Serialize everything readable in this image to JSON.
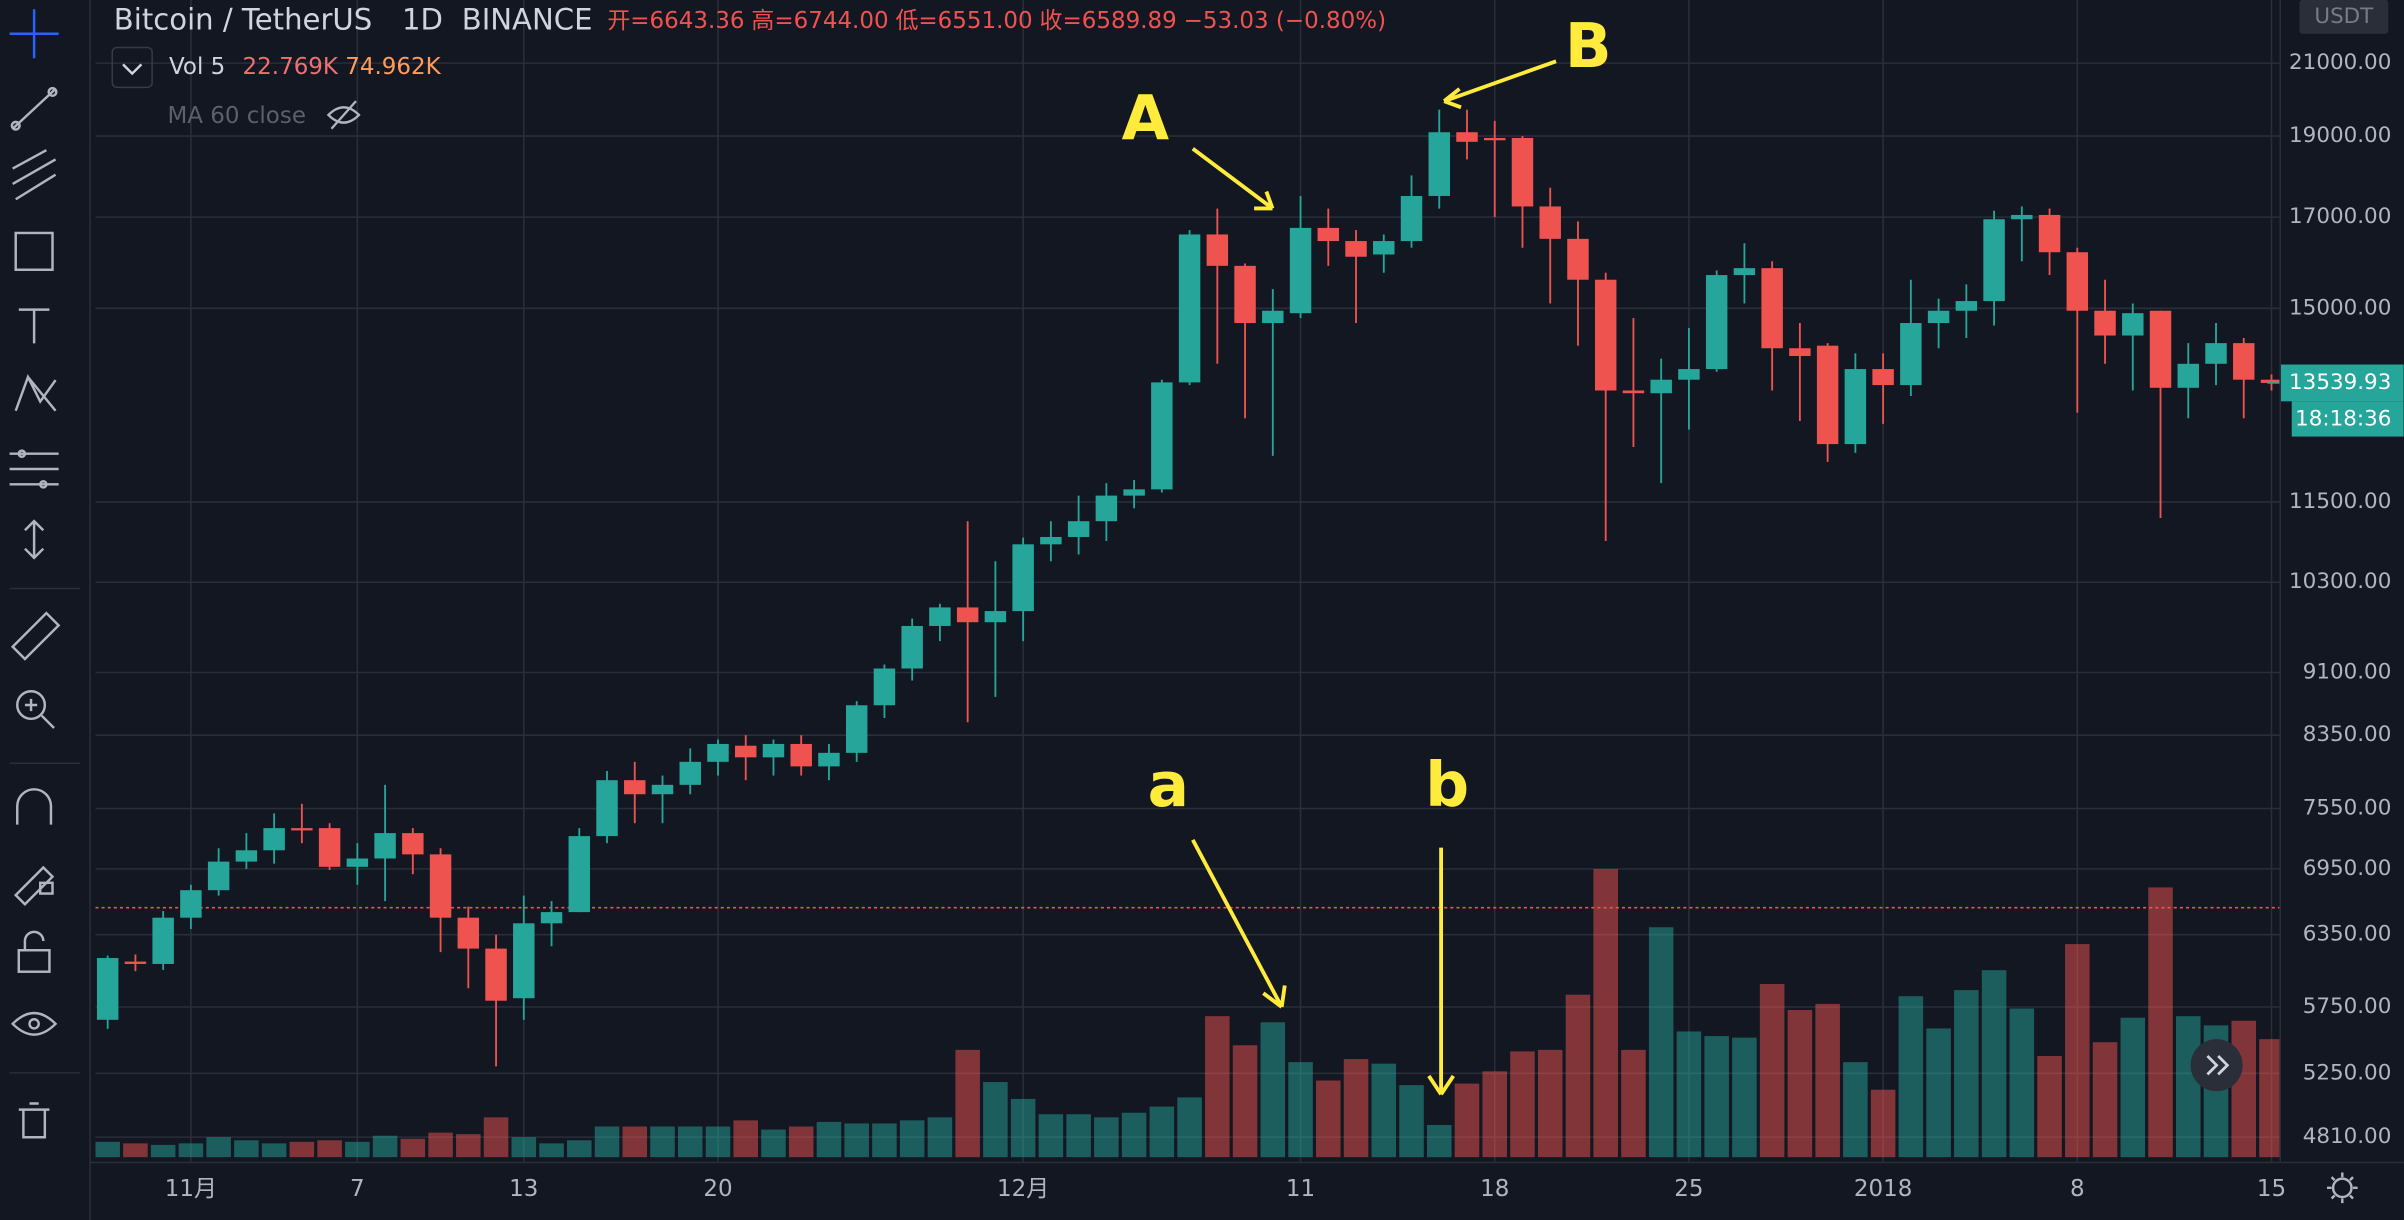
{
  "header": {
    "symbol": "Bitcoin / TetherUS",
    "interval": "1D",
    "exchange": "BINANCE",
    "ohlc": [
      "开=6643.36",
      "高=6744.00",
      "低=6551.00",
      "收=6589.89",
      "−53.03 (−0.80%)"
    ],
    "volume_legend": {
      "name": "Vol 5",
      "values": [
        "22.769K",
        "74.962K"
      ]
    },
    "ma_legend": "MA 60 close",
    "currency": "USDT",
    "timer": "18:18:36"
  },
  "chart_data": {
    "type": "candlestick",
    "log": true,
    "grid": true,
    "up_color": "#26a69a",
    "down_color": "#ef5350",
    "categories": [
      null,
      null,
      null,
      "11月",
      null,
      null,
      null,
      null,
      null,
      "7",
      null,
      null,
      null,
      null,
      null,
      "13",
      null,
      null,
      null,
      null,
      null,
      null,
      "20",
      null,
      null,
      null,
      null,
      null,
      null,
      null,
      null,
      null,
      null,
      "12月",
      null,
      null,
      null,
      null,
      null,
      null,
      null,
      null,
      null,
      "11",
      null,
      null,
      null,
      null,
      null,
      null,
      "18",
      null,
      null,
      null,
      null,
      null,
      null,
      "25",
      null,
      null,
      null,
      null,
      null,
      null,
      "2018",
      null,
      null,
      null,
      null,
      null,
      null,
      "8",
      null,
      null,
      null,
      null,
      null,
      null,
      "15"
    ],
    "open": [
      5650,
      6120,
      6100,
      6500,
      6750,
      7020,
      7130,
      7350,
      7350,
      6970,
      7050,
      7300,
      7090,
      6500,
      6230,
      5820,
      6450,
      6550,
      7270,
      7850,
      7700,
      7800,
      8050,
      8230,
      8100,
      8250,
      8000,
      8150,
      8700,
      9150,
      9700,
      9950,
      9750,
      9900,
      10850,
      10960,
      11200,
      11600,
      11700,
      13550,
      16600,
      15900,
      14700,
      14900,
      16750,
      16450,
      16150,
      16450,
      17500,
      19100,
      18950,
      18950,
      17250,
      16500,
      15600,
      13400,
      13350,
      13600,
      13800,
      15700,
      15850,
      14200,
      14250,
      12450,
      13800,
      13500,
      14700,
      14950,
      15150,
      16950,
      17050,
      16200,
      14950,
      14450,
      14950,
      13450,
      13900,
      14300,
      13600
    ],
    "high": [
      6170,
      6180,
      6560,
      6800,
      7150,
      7300,
      7500,
      7600,
      7400,
      7200,
      7800,
      7350,
      7150,
      6600,
      6350,
      6700,
      6650,
      7350,
      7950,
      8050,
      7900,
      8200,
      8300,
      8350,
      8300,
      8350,
      8250,
      8750,
      9200,
      9800,
      10000,
      11200,
      10600,
      10950,
      11200,
      11600,
      11800,
      11850,
      13600,
      16700,
      17200,
      15950,
      15400,
      17500,
      17200,
      16700,
      16600,
      18000,
      19700,
      19700,
      19400,
      19000,
      17700,
      16900,
      15750,
      14800,
      14000,
      14600,
      15800,
      16400,
      16000,
      14700,
      14300,
      14100,
      14100,
      15600,
      15200,
      15500,
      17150,
      17250,
      17200,
      16300,
      15600,
      15100,
      14950,
      14300,
      14700,
      14400,
      13700
    ],
    "low": [
      5580,
      6040,
      6050,
      6400,
      6700,
      6950,
      7000,
      7200,
      6940,
      6800,
      6650,
      6900,
      6200,
      5900,
      5300,
      5650,
      6250,
      6550,
      7200,
      7400,
      7400,
      7700,
      7900,
      7850,
      7900,
      7900,
      7850,
      8050,
      8550,
      9000,
      9500,
      8500,
      8800,
      9500,
      10600,
      10700,
      10900,
      11400,
      11650,
      13500,
      13900,
      12900,
      12250,
      14800,
      15900,
      14700,
      15750,
      16300,
      17200,
      18400,
      17000,
      16300,
      15100,
      14250,
      10900,
      12400,
      11800,
      12700,
      13750,
      15100,
      13400,
      12850,
      12150,
      12300,
      12800,
      13300,
      14200,
      14400,
      14650,
      16000,
      15700,
      13000,
      13900,
      13400,
      11250,
      12900,
      13500,
      12900,
      13400
    ],
    "close": [
      6150,
      6100,
      6500,
      6750,
      7020,
      7130,
      7350,
      7330,
      6970,
      7050,
      7300,
      7090,
      6500,
      6230,
      5800,
      6450,
      6550,
      7270,
      7850,
      7700,
      7800,
      8050,
      8250,
      8100,
      8250,
      8000,
      8150,
      8700,
      9150,
      9700,
      9950,
      9750,
      9900,
      10850,
      10960,
      11200,
      11600,
      11700,
      13550,
      16600,
      15900,
      14700,
      14950,
      16750,
      16450,
      16100,
      16450,
      17500,
      19100,
      18850,
      18900,
      17250,
      16500,
      15600,
      13400,
      13350,
      13600,
      13800,
      15700,
      15850,
      14200,
      14050,
      12450,
      13800,
      13500,
      14700,
      14950,
      15150,
      16950,
      17050,
      16200,
      14950,
      14450,
      14900,
      13450,
      13900,
      14300,
      13600,
      13540
    ],
    "volume": [
      10,
      9,
      8,
      9,
      13,
      11,
      9,
      10,
      11,
      10,
      14,
      12,
      16,
      15,
      26,
      13,
      9,
      11,
      20,
      20,
      20,
      20,
      20,
      24,
      18,
      20,
      23,
      22,
      22,
      24,
      26,
      70,
      49,
      38,
      28,
      28,
      26,
      29,
      33,
      39,
      92,
      73,
      88,
      62,
      50,
      64,
      61,
      47,
      21,
      48,
      56,
      69,
      70,
      106,
      188,
      70,
      150,
      82,
      79,
      78,
      113,
      96,
      100,
      62,
      44,
      105,
      84,
      109,
      122,
      97,
      66,
      139,
      75,
      91,
      176,
      92,
      86,
      89,
      77
    ],
    "ylim": [
      4650,
      22900
    ],
    "yticks": [
      {
        "value": 21000,
        "label": "21000.00"
      },
      {
        "value": 19000,
        "label": "19000.00"
      },
      {
        "value": 17000,
        "label": "17000.00"
      },
      {
        "value": 15000,
        "label": "15000.00"
      },
      {
        "value": 11500,
        "label": "11500.00"
      },
      {
        "value": 10300,
        "label": "10300.00"
      },
      {
        "value": 9100,
        "label": "9100.00"
      },
      {
        "value": 8350,
        "label": "8350.00"
      },
      {
        "value": 7550,
        "label": "7550.00"
      },
      {
        "value": 6950,
        "label": "6950.00"
      },
      {
        "value": 6350,
        "label": "6350.00"
      },
      {
        "value": 5750,
        "label": "5750.00"
      },
      {
        "value": 5250,
        "label": "5250.00"
      },
      {
        "value": 4810,
        "label": "4810.00"
      }
    ],
    "price_line": 6589.89,
    "last_price": {
      "value": 13539.93,
      "label": "13539.93"
    },
    "annotations": [
      "A",
      "B",
      "a",
      "b"
    ]
  }
}
